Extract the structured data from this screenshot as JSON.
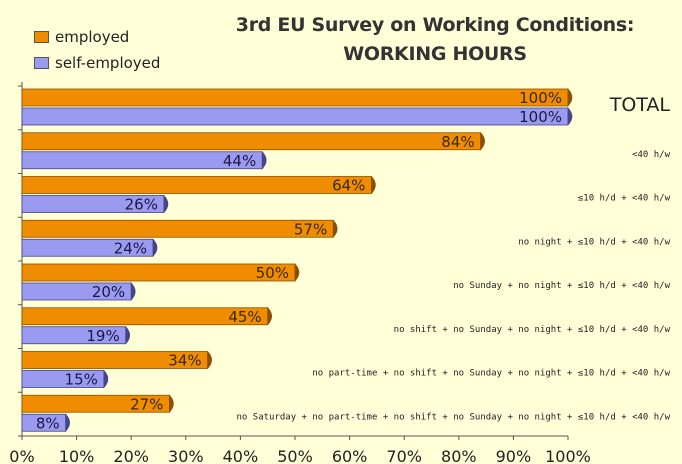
{
  "chart_data": {
    "type": "bar",
    "orientation": "horizontal",
    "title_lines": [
      "3rd EU Survey on Working Conditions:",
      "WORKING HOURS"
    ],
    "categories": [
      "TOTAL",
      "<40 h/w",
      "≤10 h/d + <40 h/w",
      "no night + ≤10 h/d + <40 h/w",
      "no Sunday + no night + ≤10 h/d + <40 h/w",
      "no shift + no Sunday + no night + ≤10 h/d + <40 h/w",
      "no part-time + no shift + no Sunday + no night + ≤10 h/d + <40 h/w",
      "no Saturday + no part-time + no shift + no Sunday + no night + ≤10 h/d + <40 h/w"
    ],
    "series": [
      {
        "name": "employed",
        "color": "#f08c00",
        "values": [
          100,
          84,
          64,
          57,
          50,
          45,
          34,
          27
        ]
      },
      {
        "name": "self-employed",
        "color": "#9a9af0",
        "values": [
          100,
          44,
          26,
          24,
          20,
          19,
          15,
          8
        ]
      }
    ],
    "value_suffix": "%",
    "xlim": [
      0,
      100
    ],
    "xticks": [
      "0%",
      "10%",
      "20%",
      "30%",
      "40%",
      "50%",
      "60%",
      "70%",
      "80%",
      "90%",
      "100%"
    ],
    "grid": false,
    "legend_position": "top-left"
  }
}
